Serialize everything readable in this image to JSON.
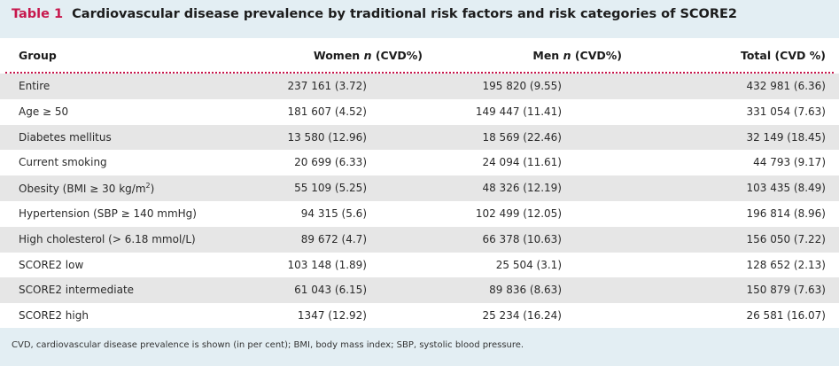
{
  "caption": {
    "table_number": "Table 1",
    "title": "Cardiovascular disease prevalence by traditional risk factors and risk categories of SCORE2"
  },
  "header": {
    "group": "Group",
    "women_prefix": "Women ",
    "women_n": "n",
    "women_suffix": " (CVD%)",
    "men_prefix": "Men ",
    "men_n": "n",
    "men_suffix": " (CVD%)",
    "total": "Total (CVD %)"
  },
  "rows": [
    {
      "group": "Entire",
      "women": "237 161 (3.72)",
      "men": "195 820 (9.55)",
      "total": "432 981 (6.36)"
    },
    {
      "group": "Age ≥ 50",
      "women": "181 607 (4.52)",
      "men": "149 447 (11.41)",
      "total": "331 054 (7.63)"
    },
    {
      "group": "Diabetes mellitus",
      "women": "13 580 (12.96)",
      "men": "18 569 (22.46)",
      "total": "32 149 (18.45)"
    },
    {
      "group": "Current smoking",
      "women": "20 699 (6.33)",
      "men": "24 094 (11.61)",
      "total": "44 793 (9.17)"
    },
    {
      "group_prefix": "Obesity (BMI ≥ 30 kg/m",
      "group_sup": "2",
      "group_suffix": ")",
      "women": "55 109 (5.25)",
      "men": "48 326 (12.19)",
      "total": "103 435 (8.49)"
    },
    {
      "group": "Hypertension (SBP ≥ 140 mmHg)",
      "women": "94 315 (5.6)",
      "men": "102 499 (12.05)",
      "total": "196 814 (8.96)"
    },
    {
      "group": "High cholesterol (> 6.18 mmol/L)",
      "women": "89 672 (4.7)",
      "men": "66 378 (10.63)",
      "total": "156 050 (7.22)"
    },
    {
      "group": "SCORE2 low",
      "women": "103 148 (1.89)",
      "men": "25 504 (3.1)",
      "total": "128 652 (2.13)"
    },
    {
      "group": "SCORE2 intermediate",
      "women": "61 043 (6.15)",
      "men": "89 836 (8.63)",
      "total": "150 879 (7.63)"
    },
    {
      "group": "SCORE2 high",
      "women": "1347 (12.92)",
      "men": "25 234 (16.24)",
      "total": "26 581 (16.07)"
    }
  ],
  "footnote": "CVD, cardiovascular disease prevalence is shown (in per cent); BMI, body mass index; SBP, systolic blood pressure.",
  "colors": {
    "accent": "#c7174c",
    "page_background": "#e3eef3",
    "row_shade": "#e6e6e6"
  }
}
